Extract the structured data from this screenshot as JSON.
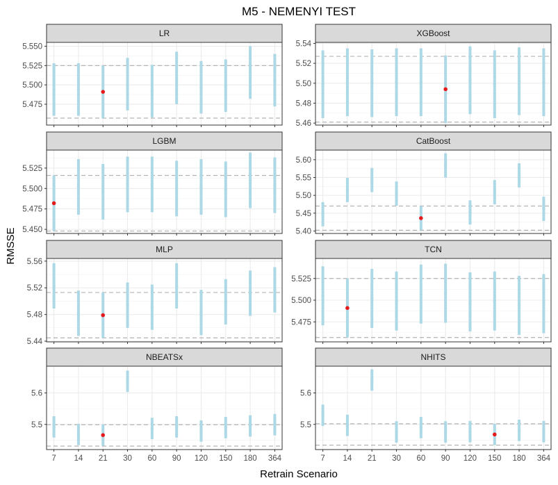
{
  "chart_data": {
    "type": "errorbar-facets",
    "title": "M5 - NEMENYI TEST",
    "xlabel": "Retrain Scenario",
    "ylabel": "RMSSE",
    "categories": [
      "7",
      "14",
      "21",
      "30",
      "60",
      "90",
      "120",
      "150",
      "180",
      "364"
    ],
    "colors": {
      "interval": "#add8e6",
      "highlight": "#e41a1c",
      "reference_line": "#b3b3b3",
      "strip_bg": "#d9d9d9"
    },
    "panels": [
      {
        "name": "LR",
        "ylim": [
          5.448,
          5.555
        ],
        "yticks": [
          5.475,
          5.5,
          5.525,
          5.55
        ],
        "ytick_labels": [
          "5.475",
          "5.500",
          "5.525",
          "5.550"
        ],
        "reference_lines": [
          5.525,
          5.457
        ],
        "highlight_index": 2,
        "points": [
          {
            "mean": 5.494,
            "low": 5.46,
            "high": 5.528
          },
          {
            "mean": 5.494,
            "low": 5.46,
            "high": 5.528
          },
          {
            "mean": 5.491,
            "low": 5.457,
            "high": 5.525
          },
          {
            "mean": 5.501,
            "low": 5.467,
            "high": 5.535
          },
          {
            "mean": 5.492,
            "low": 5.458,
            "high": 5.526
          },
          {
            "mean": 5.509,
            "low": 5.475,
            "high": 5.543
          },
          {
            "mean": 5.497,
            "low": 5.463,
            "high": 5.531
          },
          {
            "mean": 5.499,
            "low": 5.465,
            "high": 5.533
          },
          {
            "mean": 5.516,
            "low": 5.482,
            "high": 5.55
          },
          {
            "mean": 5.506,
            "low": 5.472,
            "high": 5.54
          }
        ]
      },
      {
        "name": "XGBoost",
        "ylim": [
          5.458,
          5.541
        ],
        "yticks": [
          5.46,
          5.48,
          5.5,
          5.52,
          5.54
        ],
        "ytick_labels": [
          "5.46",
          "5.48",
          "5.50",
          "5.52",
          "5.54"
        ],
        "reference_lines": [
          5.527,
          5.461
        ],
        "highlight_index": 5,
        "points": [
          {
            "mean": 5.499,
            "low": 5.465,
            "high": 5.533
          },
          {
            "mean": 5.501,
            "low": 5.467,
            "high": 5.535
          },
          {
            "mean": 5.5,
            "low": 5.466,
            "high": 5.534
          },
          {
            "mean": 5.501,
            "low": 5.467,
            "high": 5.535
          },
          {
            "mean": 5.501,
            "low": 5.467,
            "high": 5.535
          },
          {
            "mean": 5.494,
            "low": 5.46,
            "high": 5.528
          },
          {
            "mean": 5.503,
            "low": 5.469,
            "high": 5.537
          },
          {
            "mean": 5.499,
            "low": 5.465,
            "high": 5.533
          },
          {
            "mean": 5.502,
            "low": 5.468,
            "high": 5.536
          },
          {
            "mean": 5.501,
            "low": 5.467,
            "high": 5.535
          }
        ]
      },
      {
        "name": "LGBM",
        "ylim": [
          5.445,
          5.547
        ],
        "yticks": [
          5.45,
          5.475,
          5.5,
          5.525
        ],
        "ytick_labels": [
          "5.450",
          "5.475",
          "5.500",
          "5.525"
        ],
        "reference_lines": [
          5.516,
          5.448
        ],
        "highlight_index": 0,
        "points": [
          {
            "mean": 5.482,
            "low": 5.448,
            "high": 5.516
          },
          {
            "mean": 5.502,
            "low": 5.468,
            "high": 5.536
          },
          {
            "mean": 5.496,
            "low": 5.462,
            "high": 5.53
          },
          {
            "mean": 5.505,
            "low": 5.471,
            "high": 5.539
          },
          {
            "mean": 5.505,
            "low": 5.471,
            "high": 5.539
          },
          {
            "mean": 5.5,
            "low": 5.466,
            "high": 5.534
          },
          {
            "mean": 5.502,
            "low": 5.468,
            "high": 5.536
          },
          {
            "mean": 5.499,
            "low": 5.465,
            "high": 5.533
          },
          {
            "mean": 5.51,
            "low": 5.476,
            "high": 5.544
          },
          {
            "mean": 5.504,
            "low": 5.47,
            "high": 5.538
          }
        ]
      },
      {
        "name": "CatBoost",
        "ylim": [
          5.393,
          5.627
        ],
        "yticks": [
          5.4,
          5.45,
          5.5,
          5.55,
          5.6
        ],
        "ytick_labels": [
          "5.40",
          "5.45",
          "5.50",
          "5.55",
          "5.60"
        ],
        "reference_lines": [
          5.47,
          5.402
        ],
        "highlight_index": 4,
        "points": [
          {
            "mean": 5.447,
            "low": 5.413,
            "high": 5.481
          },
          {
            "mean": 5.515,
            "low": 5.481,
            "high": 5.549
          },
          {
            "mean": 5.543,
            "low": 5.509,
            "high": 5.577
          },
          {
            "mean": 5.505,
            "low": 5.471,
            "high": 5.539
          },
          {
            "mean": 5.436,
            "low": 5.402,
            "high": 5.47
          },
          {
            "mean": 5.584,
            "low": 5.55,
            "high": 5.618
          },
          {
            "mean": 5.452,
            "low": 5.418,
            "high": 5.486
          },
          {
            "mean": 5.509,
            "low": 5.475,
            "high": 5.543
          },
          {
            "mean": 5.556,
            "low": 5.522,
            "high": 5.59
          },
          {
            "mean": 5.462,
            "low": 5.428,
            "high": 5.496
          }
        ]
      },
      {
        "name": "MLP",
        "ylim": [
          5.439,
          5.564
        ],
        "yticks": [
          5.44,
          5.48,
          5.52,
          5.56
        ],
        "ytick_labels": [
          "5.44",
          "5.48",
          "5.52",
          "5.56"
        ],
        "reference_lines": [
          5.513,
          5.445
        ],
        "highlight_index": 2,
        "points": [
          {
            "mean": 5.523,
            "low": 5.489,
            "high": 5.557
          },
          {
            "mean": 5.482,
            "low": 5.448,
            "high": 5.516
          },
          {
            "mean": 5.479,
            "low": 5.445,
            "high": 5.513
          },
          {
            "mean": 5.494,
            "low": 5.46,
            "high": 5.528
          },
          {
            "mean": 5.491,
            "low": 5.457,
            "high": 5.525
          },
          {
            "mean": 5.523,
            "low": 5.489,
            "high": 5.557
          },
          {
            "mean": 5.483,
            "low": 5.449,
            "high": 5.517
          },
          {
            "mean": 5.499,
            "low": 5.465,
            "high": 5.533
          },
          {
            "mean": 5.512,
            "low": 5.478,
            "high": 5.546
          },
          {
            "mean": 5.517,
            "low": 5.483,
            "high": 5.551
          }
        ]
      },
      {
        "name": "TCN",
        "ylim": [
          5.452,
          5.548
        ],
        "yticks": [
          5.475,
          5.5,
          5.525
        ],
        "ytick_labels": [
          "5.475",
          "5.500",
          "5.525"
        ],
        "reference_lines": [
          5.525,
          5.457
        ],
        "highlight_index": 1,
        "points": [
          {
            "mean": 5.505,
            "low": 5.471,
            "high": 5.539
          },
          {
            "mean": 5.491,
            "low": 5.457,
            "high": 5.525
          },
          {
            "mean": 5.502,
            "low": 5.468,
            "high": 5.536
          },
          {
            "mean": 5.499,
            "low": 5.465,
            "high": 5.533
          },
          {
            "mean": 5.507,
            "low": 5.473,
            "high": 5.541
          },
          {
            "mean": 5.508,
            "low": 5.474,
            "high": 5.542
          },
          {
            "mean": 5.498,
            "low": 5.464,
            "high": 5.532
          },
          {
            "mean": 5.499,
            "low": 5.465,
            "high": 5.533
          },
          {
            "mean": 5.494,
            "low": 5.46,
            "high": 5.528
          },
          {
            "mean": 5.496,
            "low": 5.462,
            "high": 5.53
          }
        ]
      },
      {
        "name": "NBEATSx",
        "ylim": [
          5.42,
          5.685
        ],
        "yticks": [
          5.5,
          5.6
        ],
        "ytick_labels": [
          "5.5",
          "5.6"
        ],
        "reference_lines": [
          5.499,
          5.431
        ],
        "highlight_index": 2,
        "points": [
          {
            "mean": 5.492,
            "low": 5.458,
            "high": 5.526
          },
          {
            "mean": 5.468,
            "low": 5.434,
            "high": 5.502
          },
          {
            "mean": 5.466,
            "low": 5.432,
            "high": 5.5
          },
          {
            "mean": 5.637,
            "low": 5.603,
            "high": 5.671
          },
          {
            "mean": 5.487,
            "low": 5.453,
            "high": 5.521
          },
          {
            "mean": 5.492,
            "low": 5.458,
            "high": 5.526
          },
          {
            "mean": 5.479,
            "low": 5.445,
            "high": 5.513
          },
          {
            "mean": 5.49,
            "low": 5.456,
            "high": 5.524
          },
          {
            "mean": 5.495,
            "low": 5.461,
            "high": 5.529
          },
          {
            "mean": 5.499,
            "low": 5.465,
            "high": 5.533
          }
        ]
      },
      {
        "name": "NHITS",
        "ylim": [
          5.42,
          5.685
        ],
        "yticks": [
          5.5,
          5.6
        ],
        "ytick_labels": [
          "5.5",
          "5.6"
        ],
        "reference_lines": [
          5.502,
          5.434
        ],
        "highlight_index": 7,
        "points": [
          {
            "mean": 5.529,
            "low": 5.495,
            "high": 5.563
          },
          {
            "mean": 5.497,
            "low": 5.463,
            "high": 5.531
          },
          {
            "mean": 5.641,
            "low": 5.607,
            "high": 5.675
          },
          {
            "mean": 5.476,
            "low": 5.442,
            "high": 5.51
          },
          {
            "mean": 5.49,
            "low": 5.456,
            "high": 5.524
          },
          {
            "mean": 5.476,
            "low": 5.442,
            "high": 5.51
          },
          {
            "mean": 5.477,
            "low": 5.443,
            "high": 5.511
          },
          {
            "mean": 5.468,
            "low": 5.434,
            "high": 5.502
          },
          {
            "mean": 5.481,
            "low": 5.447,
            "high": 5.515
          },
          {
            "mean": 5.477,
            "low": 5.443,
            "high": 5.511
          }
        ]
      }
    ]
  }
}
